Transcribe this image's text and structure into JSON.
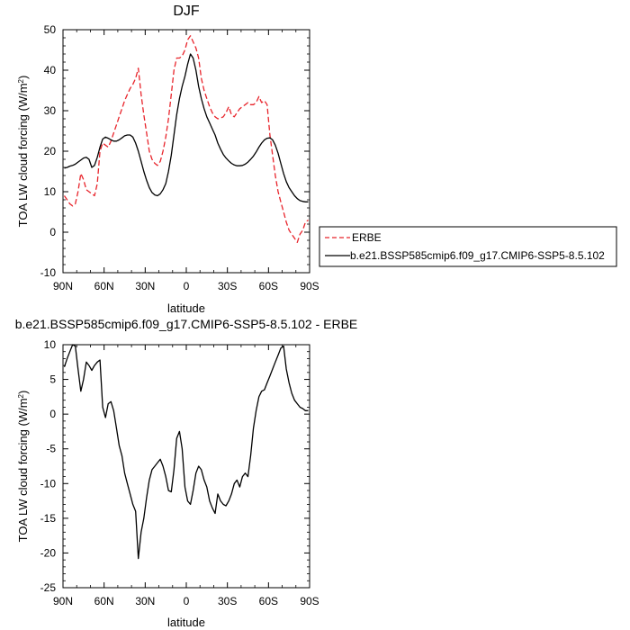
{
  "chart_data": [
    {
      "type": "line",
      "title": "DJF",
      "xlabel": "latitude",
      "ylabel": "TOA LW cloud forcing (W/m",
      "ylabel_sup": "2",
      "ylabel_close": ")",
      "xlim": [
        90,
        -90
      ],
      "ylim": [
        -10,
        50
      ],
      "yticks": [
        -10,
        0,
        10,
        20,
        30,
        40,
        50
      ],
      "xticks": [
        90,
        60,
        30,
        0,
        -30,
        -60,
        -90
      ],
      "xtick_labels": [
        "90N",
        "60N",
        "30N",
        "0",
        "30S",
        "60S",
        "90S"
      ],
      "legend_position": "right",
      "series": [
        {
          "name": "ERBE",
          "color": "#e8242b",
          "dash": "dashed",
          "x": [
            89,
            87,
            85,
            83,
            81,
            79,
            77,
            75,
            73,
            71,
            69,
            67,
            65,
            63,
            61,
            59,
            57,
            55,
            53,
            51,
            49,
            47,
            45,
            43,
            41,
            39,
            37,
            35,
            33,
            31,
            29,
            27,
            25,
            23,
            21,
            19,
            17,
            15,
            13,
            11,
            9,
            7,
            5,
            3,
            1,
            -1,
            -3,
            -5,
            -7,
            -9,
            -11,
            -13,
            -15,
            -17,
            -19,
            -21,
            -23,
            -25,
            -27,
            -29,
            -31,
            -33,
            -35,
            -37,
            -39,
            -41,
            -43,
            -45,
            -47,
            -49,
            -51,
            -53,
            -55,
            -57,
            -59,
            -61,
            -63,
            -65,
            -67,
            -69,
            -71,
            -73,
            -75,
            -77,
            -79,
            -81,
            -83,
            -85,
            -87,
            -89
          ],
          "y": [
            9.0,
            8.0,
            7.0,
            6.5,
            7.0,
            10.0,
            14.5,
            13.0,
            10.5,
            10.0,
            9.5,
            9.0,
            12.0,
            20.0,
            22.0,
            21.5,
            21.0,
            22.5,
            24.5,
            26.5,
            28.5,
            30.5,
            32.5,
            34.0,
            35.5,
            36.5,
            38.0,
            40.5,
            34.0,
            29.0,
            24.5,
            20.0,
            18.0,
            17.0,
            16.5,
            17.5,
            20.0,
            23.5,
            28.0,
            34.0,
            40.0,
            43.0,
            43.0,
            43.5,
            45.0,
            47.5,
            48.5,
            47.0,
            45.5,
            43.0,
            38.0,
            35.0,
            33.0,
            31.0,
            29.5,
            28.5,
            28.0,
            28.2,
            28.5,
            29.5,
            31.0,
            29.0,
            28.5,
            29.5,
            30.5,
            31.0,
            31.5,
            32.0,
            31.5,
            31.5,
            32.0,
            33.5,
            32.0,
            32.5,
            31.5,
            24.0,
            19.0,
            14.0,
            10.0,
            7.5,
            5.0,
            2.5,
            0.5,
            -0.5,
            -1.5,
            -2.5,
            -0.5,
            0.5,
            2.5,
            3.0
          ]
        },
        {
          "name": "b.e21.BSSP585cmip6.f09_g17.CMIP6-SSP5-8.5.102",
          "color": "#000000",
          "dash": "solid",
          "x": [
            89,
            87,
            85,
            83,
            81,
            79,
            77,
            75,
            73,
            71,
            69,
            67,
            65,
            63,
            61,
            59,
            57,
            55,
            53,
            51,
            49,
            47,
            45,
            43,
            41,
            39,
            37,
            35,
            33,
            31,
            29,
            27,
            25,
            23,
            21,
            19,
            17,
            15,
            13,
            11,
            9,
            7,
            5,
            3,
            1,
            -1,
            -3,
            -5,
            -7,
            -9,
            -11,
            -13,
            -15,
            -17,
            -19,
            -21,
            -23,
            -25,
            -27,
            -29,
            -31,
            -33,
            -35,
            -37,
            -39,
            -41,
            -43,
            -45,
            -47,
            -49,
            -51,
            -53,
            -55,
            -57,
            -59,
            -61,
            -63,
            -65,
            -67,
            -69,
            -71,
            -73,
            -75,
            -77,
            -79,
            -81,
            -83,
            -85,
            -87,
            -89
          ],
          "y": [
            15.8,
            16.0,
            16.3,
            16.5,
            16.8,
            17.3,
            17.8,
            18.3,
            18.5,
            18.0,
            16.0,
            16.5,
            18.5,
            21.0,
            23.0,
            23.5,
            23.2,
            22.8,
            22.5,
            22.5,
            22.8,
            23.3,
            23.8,
            24.0,
            24.0,
            23.5,
            22.0,
            20.0,
            17.5,
            15.0,
            12.8,
            11.0,
            9.8,
            9.2,
            9.0,
            9.5,
            10.5,
            12.0,
            15.0,
            19.0,
            24.0,
            29.0,
            33.0,
            36.0,
            38.5,
            41.5,
            44.0,
            43.0,
            40.0,
            36.0,
            33.0,
            30.5,
            28.5,
            27.0,
            25.5,
            24.0,
            22.0,
            20.5,
            19.2,
            18.3,
            17.6,
            17.0,
            16.6,
            16.4,
            16.4,
            16.5,
            16.8,
            17.3,
            18.0,
            18.8,
            19.8,
            21.0,
            22.0,
            22.8,
            23.2,
            23.3,
            22.8,
            21.5,
            19.5,
            17.0,
            14.5,
            12.5,
            11.0,
            10.0,
            9.0,
            8.3,
            7.8,
            7.6,
            7.5,
            7.5
          ]
        }
      ]
    },
    {
      "type": "line",
      "title": "b.e21.BSSP585cmip6.f09_g17.CMIP6-SSP5-8.5.102 - ERBE",
      "xlabel": "latitude",
      "ylabel": "TOA LW cloud forcing (W/m",
      "ylabel_sup": "2",
      "ylabel_close": ")",
      "xlim": [
        90,
        -90
      ],
      "ylim": [
        -25,
        10
      ],
      "yticks": [
        -25,
        -20,
        -15,
        -10,
        -5,
        0,
        5,
        10
      ],
      "xticks": [
        90,
        60,
        30,
        0,
        -30,
        -60,
        -90
      ],
      "xtick_labels": [
        "90N",
        "60N",
        "30N",
        "0",
        "30S",
        "60S",
        "90S"
      ],
      "series": [
        {
          "color": "#000000",
          "dash": "solid",
          "x": [
            89,
            87,
            85,
            83,
            81,
            79,
            77,
            75,
            73,
            71,
            69,
            67,
            65,
            63,
            61,
            59,
            57,
            55,
            53,
            51,
            49,
            47,
            45,
            43,
            41,
            39,
            37,
            35,
            33,
            31,
            29,
            27,
            25,
            23,
            21,
            19,
            17,
            15,
            13,
            11,
            9,
            7,
            5,
            3,
            1,
            -1,
            -3,
            -5,
            -7,
            -9,
            -11,
            -13,
            -15,
            -17,
            -19,
            -21,
            -23,
            -25,
            -27,
            -29,
            -31,
            -33,
            -35,
            -37,
            -39,
            -41,
            -43,
            -45,
            -47,
            -49,
            -51,
            -53,
            -55,
            -57,
            -59,
            -61,
            -63,
            -65,
            -67,
            -69,
            -71,
            -73,
            -75,
            -77,
            -79,
            -81,
            -83,
            -85,
            -87,
            -89
          ],
          "y": [
            6.8,
            8.0,
            9.0,
            10.0,
            9.8,
            6.5,
            3.3,
            5.0,
            7.5,
            7.0,
            6.3,
            7.0,
            7.5,
            7.8,
            1.0,
            -0.5,
            1.5,
            1.8,
            0.5,
            -2.0,
            -4.5,
            -6.0,
            -8.5,
            -10.0,
            -11.5,
            -13.0,
            -14.0,
            -20.8,
            -17.0,
            -15.0,
            -12.0,
            -9.5,
            -8.0,
            -7.5,
            -7.0,
            -6.5,
            -7.5,
            -9.0,
            -11.0,
            -11.2,
            -8.0,
            -3.5,
            -2.5,
            -5.0,
            -10.5,
            -12.5,
            -13.0,
            -11.0,
            -8.5,
            -7.5,
            -8.0,
            -9.5,
            -10.5,
            -12.5,
            -13.5,
            -14.3,
            -11.5,
            -12.5,
            -13.0,
            -13.2,
            -12.5,
            -11.5,
            -10.0,
            -9.5,
            -10.5,
            -9.0,
            -8.5,
            -9.0,
            -6.0,
            -2.0,
            0.5,
            2.5,
            3.3,
            3.5,
            4.5,
            5.5,
            6.5,
            7.5,
            8.5,
            9.5,
            9.8,
            6.5,
            4.5,
            3.0,
            2.0,
            1.5,
            1.0,
            0.8,
            0.5,
            0.5
          ]
        }
      ]
    }
  ]
}
